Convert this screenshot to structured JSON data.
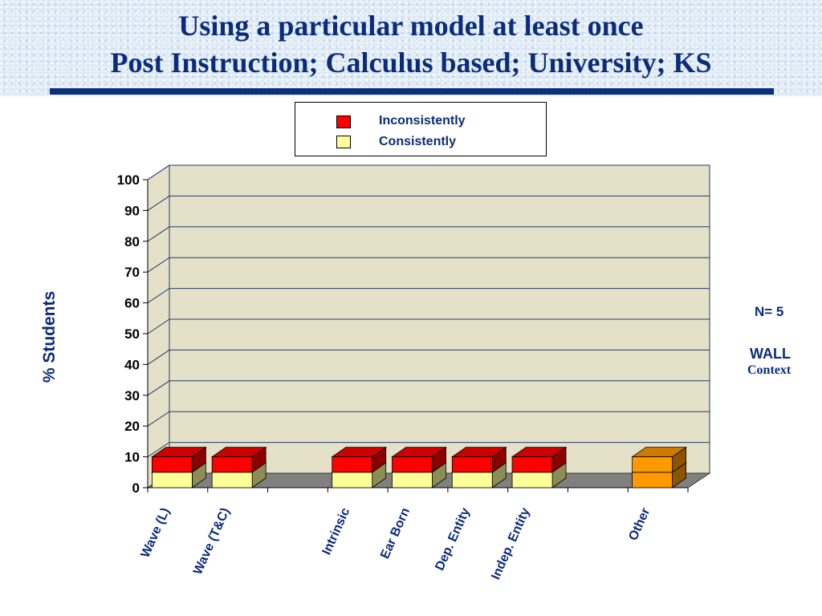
{
  "title": {
    "line1": "Using a particular model at least once",
    "line2": "Post Instruction; Calculus based; University; KS"
  },
  "notes": {
    "n": "N= 5",
    "context_name": "WALL",
    "context_label": "Context"
  },
  "colors": {
    "inconsistently": "#ff0000",
    "consistently": "#ffff99",
    "other": "#ff9900",
    "title": "#0b2c7a",
    "plot_wall": "#e4e1c8",
    "plot_floor": "#808080"
  },
  "chart_data": {
    "type": "bar",
    "stacked": true,
    "three_d": true,
    "ylabel": "% Students",
    "ylim": [
      0,
      100
    ],
    "yticks": [
      0,
      10,
      20,
      30,
      40,
      50,
      60,
      70,
      80,
      90,
      100
    ],
    "grid": true,
    "legend_position": "top-center",
    "categories": [
      "Wave (L)",
      "Wave (T&C)",
      "",
      "Intrinsic",
      "Ear Born",
      "Dep. Entity",
      "Indep. Entity",
      "",
      "Other"
    ],
    "series": [
      {
        "name": "Consistently",
        "values": [
          5,
          5,
          0,
          5,
          5,
          5,
          5,
          0,
          5
        ]
      },
      {
        "name": "Inconsistently",
        "values": [
          5,
          5,
          0,
          5,
          5,
          5,
          5,
          0,
          5
        ]
      }
    ]
  }
}
